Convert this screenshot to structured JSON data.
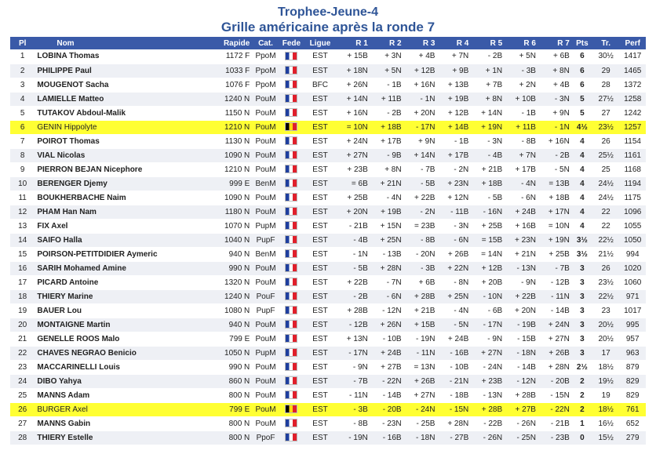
{
  "title": "Trophee-Jeune-4",
  "subtitle": "Grille américaine après la ronde 7",
  "columns": [
    "Pl",
    "Nom",
    "Rapide",
    "Cat.",
    "Fede",
    "Ligue",
    "R 1",
    "R 2",
    "R 3",
    "R 4",
    "R 5",
    "R 6",
    "R 7",
    "Pts",
    "Tr.",
    "Perf"
  ],
  "highlighted_places": [
    "6",
    "26"
  ],
  "flag_colors": {
    "fr": [
      "#1f3f9e",
      "#ffffff",
      "#e01f2b"
    ],
    "be": [
      "#000000",
      "#ffd90f",
      "#e01f2b"
    ]
  },
  "players": [
    {
      "pl": "1",
      "nom": "LOBINA Thomas",
      "rapide": "1172 F",
      "cat": "PpoM",
      "flag": "fr",
      "ligue": "EST",
      "r": [
        "+ 15B",
        "+ 3N",
        "+ 4B",
        "+ 7N",
        "- 2B",
        "+ 5N",
        "+ 6B"
      ],
      "pts": "6",
      "tr": "30½",
      "perf": "1417"
    },
    {
      "pl": "2",
      "nom": "PHILIPPE Paul",
      "rapide": "1033 F",
      "cat": "PpoM",
      "flag": "fr",
      "ligue": "EST",
      "r": [
        "+ 18N",
        "+ 5N",
        "+ 12B",
        "+ 9B",
        "+ 1N",
        "- 3B",
        "+ 8N"
      ],
      "pts": "6",
      "tr": "29",
      "perf": "1465"
    },
    {
      "pl": "3",
      "nom": "MOUGENOT Sacha",
      "rapide": "1076 F",
      "cat": "PpoM",
      "flag": "fr",
      "ligue": "BFC",
      "r": [
        "+ 26N",
        "- 1B",
        "+ 16N",
        "+ 13B",
        "+ 7B",
        "+ 2N",
        "+ 4B"
      ],
      "pts": "6",
      "tr": "28",
      "perf": "1372"
    },
    {
      "pl": "4",
      "nom": "LAMIELLE Matteo",
      "rapide": "1240 N",
      "cat": "PouM",
      "flag": "fr",
      "ligue": "EST",
      "r": [
        "+ 14N",
        "+ 11B",
        "- 1N",
        "+ 19B",
        "+ 8N",
        "+ 10B",
        "- 3N"
      ],
      "pts": "5",
      "tr": "27½",
      "perf": "1258"
    },
    {
      "pl": "5",
      "nom": "TUTAKOV Abdoul-Malik",
      "rapide": "1150 N",
      "cat": "PouM",
      "flag": "fr",
      "ligue": "EST",
      "r": [
        "+ 16N",
        "- 2B",
        "+ 20N",
        "+ 12B",
        "+ 14N",
        "- 1B",
        "+ 9N"
      ],
      "pts": "5",
      "tr": "27",
      "perf": "1242"
    },
    {
      "pl": "6",
      "nom": "GENIN Hippolyte",
      "rapide": "1210 N",
      "cat": "PouM",
      "flag": "be",
      "ligue": "EST",
      "r": [
        "= 10N",
        "+ 18B",
        "- 17N",
        "+ 14B",
        "+ 19N",
        "+ 11B",
        "- 1N"
      ],
      "pts": "4½",
      "tr": "23½",
      "perf": "1257"
    },
    {
      "pl": "7",
      "nom": "POIROT Thomas",
      "rapide": "1130 N",
      "cat": "PouM",
      "flag": "fr",
      "ligue": "EST",
      "r": [
        "+ 24N",
        "+ 17B",
        "+ 9N",
        "- 1B",
        "- 3N",
        "- 8B",
        "+ 16N"
      ],
      "pts": "4",
      "tr": "26",
      "perf": "1154"
    },
    {
      "pl": "8",
      "nom": "VIAL Nicolas",
      "rapide": "1090 N",
      "cat": "PouM",
      "flag": "fr",
      "ligue": "EST",
      "r": [
        "+ 27N",
        "- 9B",
        "+ 14N",
        "+ 17B",
        "- 4B",
        "+ 7N",
        "- 2B"
      ],
      "pts": "4",
      "tr": "25½",
      "perf": "1161"
    },
    {
      "pl": "9",
      "nom": "PIERRON BEJAN Nicephore",
      "rapide": "1210 N",
      "cat": "PouM",
      "flag": "fr",
      "ligue": "EST",
      "r": [
        "+ 23B",
        "+ 8N",
        "- 7B",
        "- 2N",
        "+ 21B",
        "+ 17B",
        "- 5N"
      ],
      "pts": "4",
      "tr": "25",
      "perf": "1168"
    },
    {
      "pl": "10",
      "nom": "BERENGER Djemy",
      "rapide": "999 E",
      "cat": "BenM",
      "flag": "fr",
      "ligue": "EST",
      "r": [
        "= 6B",
        "+ 21N",
        "- 5B",
        "+ 23N",
        "+ 18B",
        "- 4N",
        "= 13B"
      ],
      "pts": "4",
      "tr": "24½",
      "perf": "1194"
    },
    {
      "pl": "11",
      "nom": "BOUKHERBACHE Naim",
      "rapide": "1090 N",
      "cat": "PouM",
      "flag": "fr",
      "ligue": "EST",
      "r": [
        "+ 25B",
        "- 4N",
        "+ 22B",
        "+ 12N",
        "- 5B",
        "- 6N",
        "+ 18B"
      ],
      "pts": "4",
      "tr": "24½",
      "perf": "1175"
    },
    {
      "pl": "12",
      "nom": "PHAM Han Nam",
      "rapide": "1180 N",
      "cat": "PouM",
      "flag": "fr",
      "ligue": "EST",
      "r": [
        "+ 20N",
        "+ 19B",
        "- 2N",
        "- 11B",
        "- 16N",
        "+ 24B",
        "+ 17N"
      ],
      "pts": "4",
      "tr": "22",
      "perf": "1096"
    },
    {
      "pl": "13",
      "nom": "FIX Axel",
      "rapide": "1070 N",
      "cat": "PupM",
      "flag": "fr",
      "ligue": "EST",
      "r": [
        "- 21B",
        "+ 15N",
        "= 23B",
        "- 3N",
        "+ 25B",
        "+ 16B",
        "= 10N"
      ],
      "pts": "4",
      "tr": "22",
      "perf": "1055"
    },
    {
      "pl": "14",
      "nom": "SAIFO Halla",
      "rapide": "1040 N",
      "cat": "PupF",
      "flag": "fr",
      "ligue": "EST",
      "r": [
        "- 4B",
        "+ 25N",
        "- 8B",
        "- 6N",
        "= 15B",
        "+ 23N",
        "+ 19N"
      ],
      "pts": "3½",
      "tr": "22½",
      "perf": "1050"
    },
    {
      "pl": "15",
      "nom": "POIRSON-PETITDIDIER Aymeric",
      "rapide": "940 N",
      "cat": "BenM",
      "flag": "fr",
      "ligue": "EST",
      "r": [
        "- 1N",
        "- 13B",
        "- 20N",
        "+ 26B",
        "= 14N",
        "+ 21N",
        "+ 25B"
      ],
      "pts": "3½",
      "tr": "21½",
      "perf": "994"
    },
    {
      "pl": "16",
      "nom": "SARIH Mohamed Amine",
      "rapide": "990 N",
      "cat": "PouM",
      "flag": "fr",
      "ligue": "EST",
      "r": [
        "- 5B",
        "+ 28N",
        "- 3B",
        "+ 22N",
        "+ 12B",
        "- 13N",
        "- 7B"
      ],
      "pts": "3",
      "tr": "26",
      "perf": "1020"
    },
    {
      "pl": "17",
      "nom": "PICARD Antoine",
      "rapide": "1320 N",
      "cat": "PouM",
      "flag": "fr",
      "ligue": "EST",
      "r": [
        "+ 22B",
        "- 7N",
        "+ 6B",
        "- 8N",
        "+ 20B",
        "- 9N",
        "- 12B"
      ],
      "pts": "3",
      "tr": "23½",
      "perf": "1060"
    },
    {
      "pl": "18",
      "nom": "THIERY Marine",
      "rapide": "1240 N",
      "cat": "PouF",
      "flag": "fr",
      "ligue": "EST",
      "r": [
        "- 2B",
        "- 6N",
        "+ 28B",
        "+ 25N",
        "- 10N",
        "+ 22B",
        "- 11N"
      ],
      "pts": "3",
      "tr": "22½",
      "perf": "971"
    },
    {
      "pl": "19",
      "nom": "BAUER Lou",
      "rapide": "1080 N",
      "cat": "PupF",
      "flag": "fr",
      "ligue": "EST",
      "r": [
        "+ 28B",
        "- 12N",
        "+ 21B",
        "- 4N",
        "- 6B",
        "+ 20N",
        "- 14B"
      ],
      "pts": "3",
      "tr": "23",
      "perf": "1017"
    },
    {
      "pl": "20",
      "nom": "MONTAIGNE Martin",
      "rapide": "940 N",
      "cat": "PouM",
      "flag": "fr",
      "ligue": "EST",
      "r": [
        "- 12B",
        "+ 26N",
        "+ 15B",
        "- 5N",
        "- 17N",
        "- 19B",
        "+ 24N"
      ],
      "pts": "3",
      "tr": "20½",
      "perf": "995"
    },
    {
      "pl": "21",
      "nom": "GENELLE ROOS Malo",
      "rapide": "799 E",
      "cat": "PouM",
      "flag": "fr",
      "ligue": "EST",
      "r": [
        "+ 13N",
        "- 10B",
        "- 19N",
        "+ 24B",
        "- 9N",
        "- 15B",
        "+ 27N"
      ],
      "pts": "3",
      "tr": "20½",
      "perf": "957"
    },
    {
      "pl": "22",
      "nom": "CHAVES NEGRAO Benicio",
      "rapide": "1050 N",
      "cat": "PupM",
      "flag": "fr",
      "ligue": "EST",
      "r": [
        "- 17N",
        "+ 24B",
        "- 11N",
        "- 16B",
        "+ 27N",
        "- 18N",
        "+ 26B"
      ],
      "pts": "3",
      "tr": "17",
      "perf": "963"
    },
    {
      "pl": "23",
      "nom": "MACCARINELLI Louis",
      "rapide": "990 N",
      "cat": "PouM",
      "flag": "fr",
      "ligue": "EST",
      "r": [
        "- 9N",
        "+ 27B",
        "= 13N",
        "- 10B",
        "- 24N",
        "- 14B",
        "+ 28N"
      ],
      "pts": "2½",
      "tr": "18½",
      "perf": "879"
    },
    {
      "pl": "24",
      "nom": "DIBO Yahya",
      "rapide": "860 N",
      "cat": "PouM",
      "flag": "fr",
      "ligue": "EST",
      "r": [
        "- 7B",
        "- 22N",
        "+ 26B",
        "- 21N",
        "+ 23B",
        "- 12N",
        "- 20B"
      ],
      "pts": "2",
      "tr": "19½",
      "perf": "829"
    },
    {
      "pl": "25",
      "nom": "MANNS Adam",
      "rapide": "800 N",
      "cat": "PouM",
      "flag": "fr",
      "ligue": "EST",
      "r": [
        "- 11N",
        "- 14B",
        "+ 27N",
        "- 18B",
        "- 13N",
        "+ 28B",
        "- 15N"
      ],
      "pts": "2",
      "tr": "19",
      "perf": "829"
    },
    {
      "pl": "26",
      "nom": "BURGER Axel",
      "rapide": "799 E",
      "cat": "PouM",
      "flag": "be",
      "ligue": "EST",
      "r": [
        "- 3B",
        "- 20B",
        "- 24N",
        "- 15N",
        "+ 28B",
        "+ 27B",
        "- 22N"
      ],
      "pts": "2",
      "tr": "18½",
      "perf": "761"
    },
    {
      "pl": "27",
      "nom": "MANNS Gabin",
      "rapide": "800 N",
      "cat": "PouM",
      "flag": "fr",
      "ligue": "EST",
      "r": [
        "- 8B",
        "- 23N",
        "- 25B",
        "+ 28N",
        "- 22B",
        "- 26N",
        "- 21B"
      ],
      "pts": "1",
      "tr": "16½",
      "perf": "652"
    },
    {
      "pl": "28",
      "nom": "THIERY Estelle",
      "rapide": "800 N",
      "cat": "PpoF",
      "flag": "fr",
      "ligue": "EST",
      "r": [
        "- 19N",
        "- 16B",
        "- 18N",
        "- 27B",
        "- 26N",
        "- 25N",
        "- 23B"
      ],
      "pts": "0",
      "tr": "15½",
      "perf": "279"
    }
  ]
}
